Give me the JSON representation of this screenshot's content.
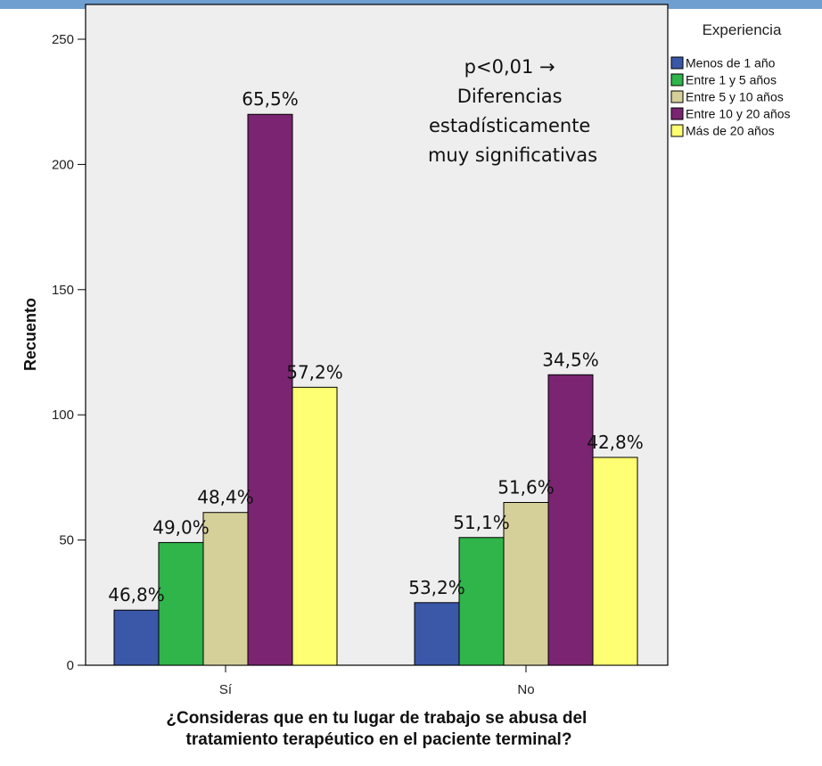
{
  "chart_data": {
    "type": "bar",
    "categories": [
      "Sí",
      "No"
    ],
    "xlabel": [
      "¿Consideras que en tu lugar de trabajo se abusa del",
      "tratamiento terapéutico en el paciente terminal?"
    ],
    "ylabel": "Recuento",
    "ylim": [
      0,
      250
    ],
    "yticks": [
      0,
      50,
      100,
      150,
      200,
      250
    ],
    "grid": false,
    "legend_position": "right",
    "legend_title": "Experiencia",
    "series": [
      {
        "name": "Menos de 1 año",
        "color": "#3a57a8",
        "values": [
          22,
          25
        ],
        "labels": [
          "46,8%",
          "53,2%"
        ]
      },
      {
        "name": "Entre 1 y 5 años",
        "color": "#2fb54a",
        "values": [
          49,
          51
        ],
        "labels": [
          "49,0%",
          "51,1%"
        ]
      },
      {
        "name": "Entre 5 y 10 años",
        "color": "#d5cf9a",
        "values": [
          61,
          65
        ],
        "labels": [
          "48,4%",
          "51,6%"
        ]
      },
      {
        "name": "Entre 10 y 20 años",
        "color": "#7a2472",
        "values": [
          220,
          116
        ],
        "labels": [
          "65,5%",
          "34,5%"
        ]
      },
      {
        "name": "Más de 20 años",
        "color": "#ffff73",
        "values": [
          111,
          83
        ],
        "labels": [
          "57,2%",
          "42,8%"
        ]
      }
    ],
    "annotation": [
      "p<0,01 →",
      "Diferencias",
      "estadísticamente",
      "muy significativas"
    ]
  }
}
